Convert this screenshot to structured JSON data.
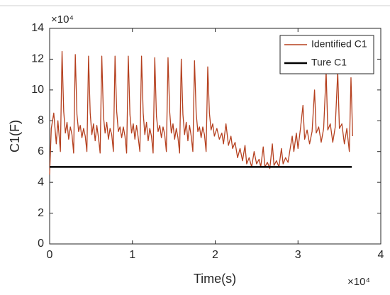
{
  "chart_data": {
    "type": "line",
    "xlabel": "Time(s)",
    "ylabel": "C1(F)",
    "x_multiplier": "×10⁴",
    "y_multiplier": "×10⁴",
    "xlim": [
      0,
      4
    ],
    "xticks": [
      0,
      1,
      2,
      3,
      4
    ],
    "ylim": [
      0,
      14
    ],
    "yticks": [
      0,
      2,
      4,
      6,
      8,
      10,
      12,
      14
    ],
    "grid": false,
    "legend": "upper right",
    "series": [
      {
        "name": "Identified C1",
        "color": "#b5401f",
        "x": [
          0,
          0.02,
          0.05,
          0.08,
          0.1,
          0.13,
          0.15,
          0.17,
          0.19,
          0.21,
          0.23,
          0.25,
          0.27,
          0.29,
          0.31,
          0.33,
          0.35,
          0.37,
          0.39,
          0.41,
          0.43,
          0.45,
          0.47,
          0.49,
          0.51,
          0.53,
          0.55,
          0.57,
          0.59,
          0.61,
          0.63,
          0.65,
          0.67,
          0.69,
          0.71,
          0.73,
          0.75,
          0.77,
          0.79,
          0.81,
          0.83,
          0.85,
          0.87,
          0.89,
          0.91,
          0.93,
          0.95,
          0.97,
          0.99,
          1.01,
          1.03,
          1.05,
          1.07,
          1.09,
          1.11,
          1.13,
          1.15,
          1.17,
          1.19,
          1.21,
          1.23,
          1.25,
          1.27,
          1.29,
          1.31,
          1.33,
          1.35,
          1.37,
          1.39,
          1.41,
          1.43,
          1.45,
          1.47,
          1.49,
          1.51,
          1.53,
          1.55,
          1.57,
          1.59,
          1.61,
          1.63,
          1.65,
          1.67,
          1.69,
          1.71,
          1.73,
          1.75,
          1.77,
          1.79,
          1.81,
          1.83,
          1.85,
          1.87,
          1.89,
          1.91,
          1.93,
          1.95,
          1.97,
          1.99,
          2.02,
          2.05,
          2.08,
          2.1,
          2.13,
          2.16,
          2.19,
          2.21,
          2.24,
          2.27,
          2.3,
          2.33,
          2.36,
          2.38,
          2.41,
          2.44,
          2.47,
          2.5,
          2.53,
          2.55,
          2.58,
          2.6,
          2.63,
          2.66,
          2.69,
          2.71,
          2.74,
          2.77,
          2.8,
          2.82,
          2.85,
          2.88,
          2.9,
          2.93,
          2.95,
          2.98,
          3.0,
          3.03,
          3.06,
          3.08,
          3.11,
          3.14,
          3.17,
          3.2,
          3.22,
          3.25,
          3.28,
          3.31,
          3.34,
          3.36,
          3.39,
          3.42,
          3.45,
          3.48,
          3.5,
          3.53,
          3.56,
          3.59,
          3.62,
          3.64,
          3.66
        ],
        "values": [
          4.5,
          7.5,
          8.5,
          6.5,
          8.0,
          6.0,
          12.5,
          8.6,
          7.2,
          7.9,
          6.8,
          7.6,
          7.1,
          5.9,
          12.3,
          8.4,
          7.3,
          7.7,
          6.9,
          7.5,
          7.0,
          6.0,
          12.2,
          8.5,
          7.1,
          7.8,
          6.7,
          7.7,
          6.9,
          5.9,
          12.2,
          8.3,
          7.2,
          7.9,
          6.8,
          7.5,
          7.1,
          6.0,
          12.2,
          8.6,
          7.3,
          7.6,
          6.9,
          7.6,
          7.0,
          5.9,
          12.2,
          8.4,
          7.2,
          7.8,
          6.8,
          7.7,
          6.9,
          6.0,
          12.2,
          8.5,
          7.1,
          7.9,
          6.7,
          7.5,
          7.0,
          5.9,
          12.1,
          8.3,
          7.3,
          7.7,
          6.9,
          7.6,
          7.1,
          6.0,
          12.1,
          8.6,
          7.2,
          7.8,
          6.8,
          7.5,
          6.9,
          5.9,
          12.0,
          8.4,
          7.1,
          7.9,
          6.7,
          7.7,
          7.0,
          6.0,
          11.9,
          8.5,
          7.3,
          7.6,
          6.9,
          7.6,
          7.1,
          6.0,
          11.5,
          8.5,
          7.4,
          7.8,
          7.0,
          7.5,
          6.8,
          7.2,
          6.5,
          7.8,
          6.4,
          7.0,
          6.2,
          6.6,
          5.6,
          6.2,
          5.4,
          6.4,
          5.2,
          5.6,
          5.0,
          6.0,
          5.2,
          5.5,
          5.0,
          6.3,
          5.0,
          5.3,
          4.9,
          6.5,
          5.1,
          5.4,
          5.0,
          6.2,
          5.2,
          5.6,
          5.3,
          6.0,
          7.0,
          6.0,
          7.2,
          6.2,
          7.5,
          9.0,
          6.8,
          7.4,
          6.5,
          7.3,
          10.0,
          7.2,
          7.6,
          6.6,
          7.5,
          11.2,
          7.4,
          7.8,
          6.6,
          7.6,
          11.2,
          7.5,
          7.8,
          6.5,
          7.5,
          6.0,
          10.8,
          7.0
        ]
      },
      {
        "name": "Ture C1",
        "color": "#000000",
        "x": [
          0,
          3.65
        ],
        "values": [
          5,
          5
        ]
      }
    ]
  }
}
